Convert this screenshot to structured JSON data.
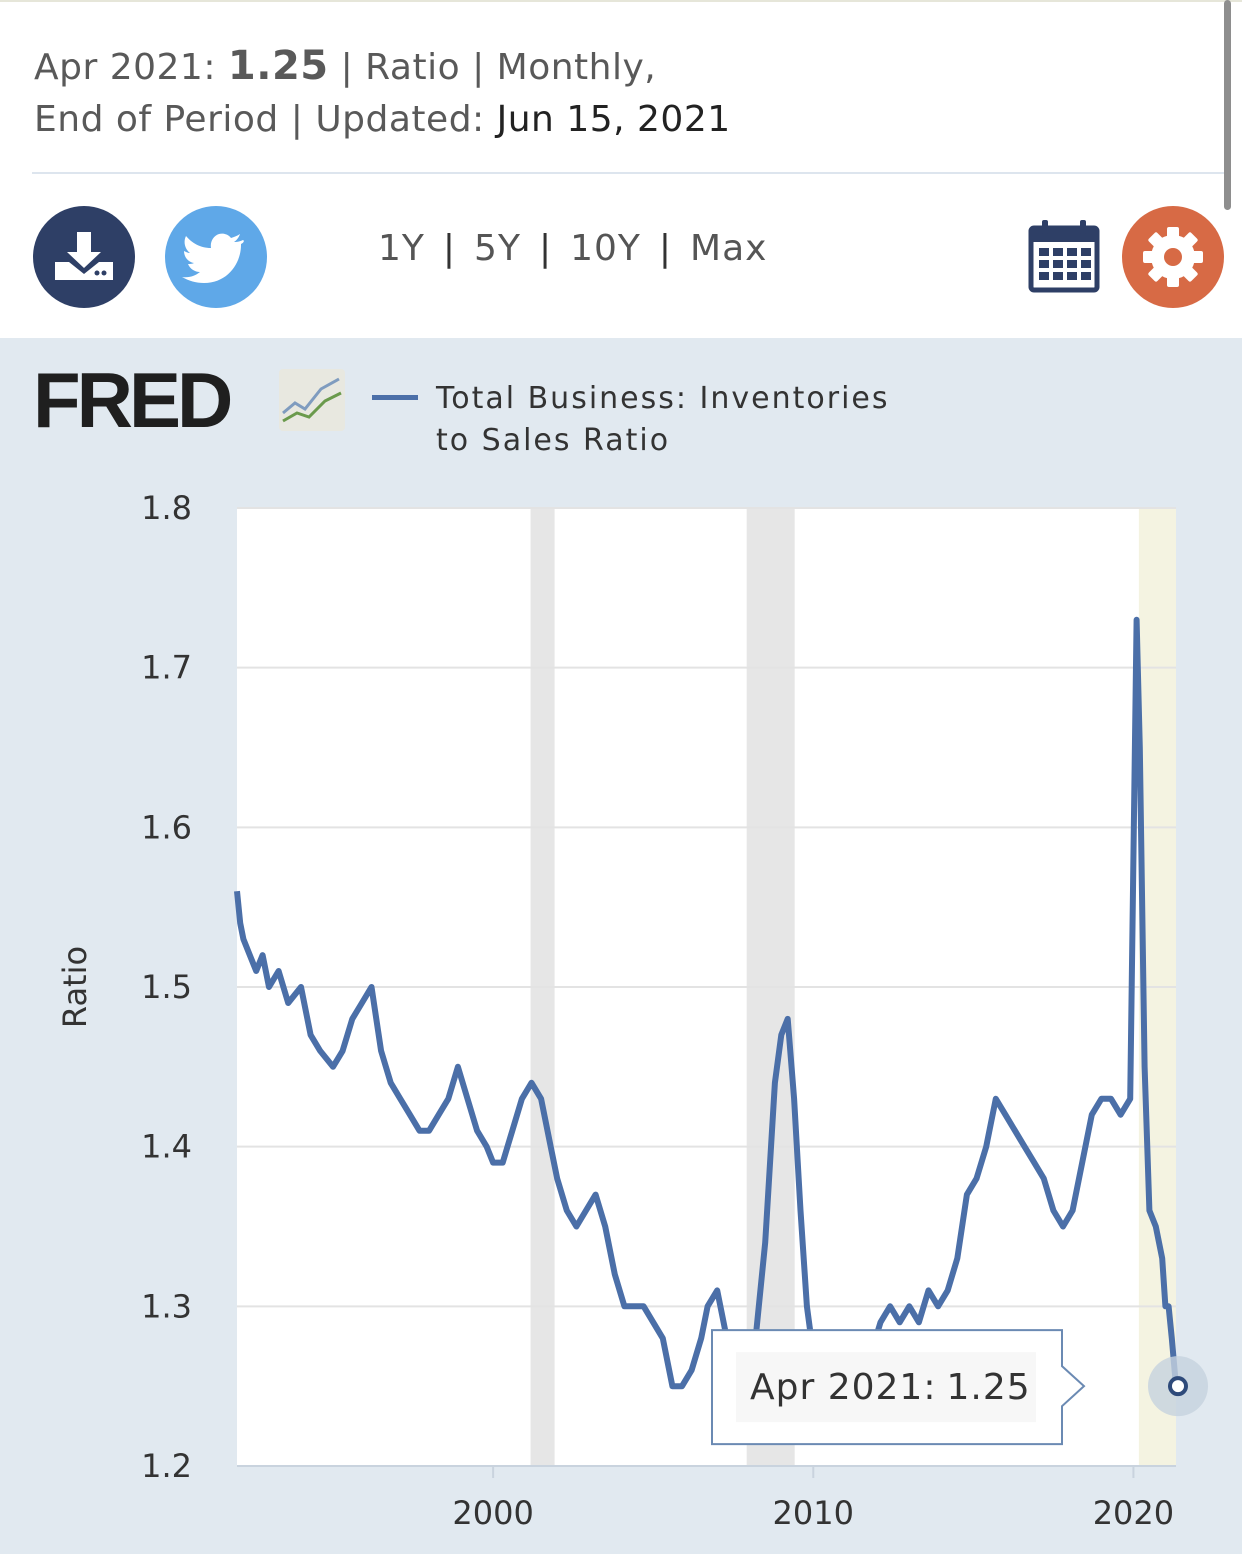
{
  "header": {
    "date_label": "Apr 2021:",
    "value": "1.25",
    "sep1": "|",
    "units": "Ratio",
    "sep2": "|",
    "frequency": "Monthly,",
    "aggregation": "End of Period",
    "sep3": "|",
    "updated_label": "Updated:",
    "updated_date": "Jun 15, 2021"
  },
  "toolbar": {
    "ranges": [
      "1Y",
      "5Y",
      "10Y",
      "Max"
    ],
    "separator": "|"
  },
  "icons": {
    "download": "download-icon",
    "twitter": "twitter-icon",
    "calendar": "calendar-icon",
    "settings": "gear-icon"
  },
  "colors": {
    "series": "#4b6fa8",
    "recession": "#e6e6e6",
    "download_bg": "#2e3f66",
    "twitter_bg": "#5fa8e8",
    "settings_bg": "#d76a45",
    "panel_bg": "#e1e9f0",
    "highlight_band": "#f4f3e1"
  },
  "brand": {
    "logo_text": "FRED"
  },
  "tooltip": {
    "label": "Apr 2021:",
    "value": "1.25"
  },
  "chart_data": {
    "type": "line",
    "title": "",
    "xlabel": "",
    "ylabel": "Ratio",
    "xlim": [
      1992.0,
      2021.33
    ],
    "ylim": [
      1.2,
      1.8
    ],
    "yticks": [
      "1.2",
      "1.3",
      "1.4",
      "1.5",
      "1.6",
      "1.7",
      "1.8"
    ],
    "xticks": [
      "2000",
      "2010",
      "2020"
    ],
    "grid": true,
    "legend": "top",
    "recessions": [
      [
        2001.17,
        2001.92
      ],
      [
        2007.92,
        2009.42
      ]
    ],
    "highlight": [
      2020.17,
      2021.33
    ],
    "series": [
      {
        "name": "Total Business: Inventories to Sales Ratio",
        "x": [
          1992.0,
          1992.1,
          1992.2,
          1992.4,
          1992.6,
          1992.8,
          1993.0,
          1993.3,
          1993.6,
          1994.0,
          1994.3,
          1994.6,
          1995.0,
          1995.3,
          1995.6,
          1995.9,
          1996.2,
          1996.5,
          1996.8,
          1997.1,
          1997.4,
          1997.7,
          1998.0,
          1998.3,
          1998.6,
          1998.9,
          1999.2,
          1999.5,
          1999.8,
          2000.0,
          2000.3,
          2000.6,
          2000.9,
          2001.2,
          2001.5,
          2001.8,
          2002.0,
          2002.3,
          2002.6,
          2002.9,
          2003.2,
          2003.5,
          2003.8,
          2004.1,
          2004.4,
          2004.7,
          2005.0,
          2005.3,
          2005.6,
          2005.9,
          2006.2,
          2006.5,
          2006.7,
          2007.0,
          2007.3,
          2007.6,
          2007.9,
          2008.2,
          2008.5,
          2008.8,
          2009.0,
          2009.2,
          2009.4,
          2009.6,
          2009.8,
          2010.0,
          2010.3,
          2010.6,
          2010.9,
          2011.2,
          2011.5,
          2011.8,
          2012.1,
          2012.4,
          2012.7,
          2013.0,
          2013.3,
          2013.6,
          2013.9,
          2014.2,
          2014.5,
          2014.8,
          2015.1,
          2015.4,
          2015.7,
          2016.0,
          2016.3,
          2016.6,
          2016.9,
          2017.2,
          2017.5,
          2017.8,
          2018.1,
          2018.4,
          2018.7,
          2019.0,
          2019.3,
          2019.6,
          2019.9,
          2020.1,
          2020.2,
          2020.35,
          2020.5,
          2020.7,
          2020.9,
          2021.0,
          2021.1,
          2021.2,
          2021.33
        ],
        "values": [
          1.56,
          1.54,
          1.53,
          1.52,
          1.51,
          1.52,
          1.5,
          1.51,
          1.49,
          1.5,
          1.47,
          1.46,
          1.45,
          1.46,
          1.48,
          1.49,
          1.5,
          1.46,
          1.44,
          1.43,
          1.42,
          1.41,
          1.41,
          1.42,
          1.43,
          1.45,
          1.43,
          1.41,
          1.4,
          1.39,
          1.39,
          1.41,
          1.43,
          1.44,
          1.43,
          1.4,
          1.38,
          1.36,
          1.35,
          1.36,
          1.37,
          1.35,
          1.32,
          1.3,
          1.3,
          1.3,
          1.29,
          1.28,
          1.25,
          1.25,
          1.26,
          1.28,
          1.3,
          1.31,
          1.28,
          1.27,
          1.27,
          1.28,
          1.34,
          1.44,
          1.47,
          1.48,
          1.43,
          1.36,
          1.3,
          1.27,
          1.27,
          1.27,
          1.26,
          1.27,
          1.26,
          1.27,
          1.29,
          1.3,
          1.29,
          1.3,
          1.29,
          1.31,
          1.3,
          1.31,
          1.33,
          1.37,
          1.38,
          1.4,
          1.43,
          1.42,
          1.41,
          1.4,
          1.39,
          1.38,
          1.36,
          1.35,
          1.36,
          1.39,
          1.42,
          1.43,
          1.43,
          1.42,
          1.43,
          1.73,
          1.65,
          1.45,
          1.36,
          1.35,
          1.33,
          1.3,
          1.3,
          1.28,
          1.25
        ]
      }
    ]
  }
}
